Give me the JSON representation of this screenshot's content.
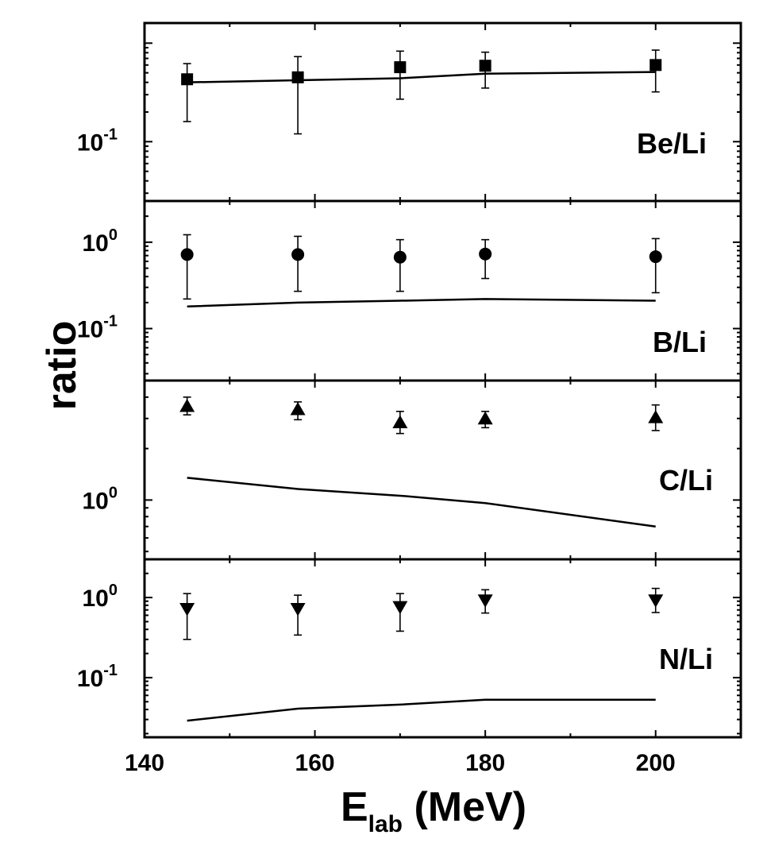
{
  "chart_data": {
    "type": "scatter",
    "xlabel": "E",
    "xlabel_subscript": "lab",
    "xlabel_unit": " (MeV)",
    "ylabel": "ratio",
    "xlim": [
      140,
      210
    ],
    "x_ticks": [
      140,
      160,
      180,
      200
    ],
    "x_tick_labels": [
      "140",
      "160",
      "180",
      "200"
    ],
    "grid": false,
    "log_y": true,
    "panels": [
      {
        "label": "Be/Li",
        "marker": "square",
        "ylim": [
          0.025,
          1.6
        ],
        "y_ticks": [
          {
            "value": 0.1,
            "base": "10",
            "exp": "-1"
          }
        ],
        "points": [
          {
            "x": 145,
            "y": 0.43,
            "err_low": 0.16,
            "err_high": 0.62
          },
          {
            "x": 158,
            "y": 0.45,
            "err_low": 0.12,
            "err_high": 0.73
          },
          {
            "x": 170,
            "y": 0.57,
            "err_low": 0.27,
            "err_high": 0.83
          },
          {
            "x": 180,
            "y": 0.59,
            "err_low": 0.35,
            "err_high": 0.81
          },
          {
            "x": 200,
            "y": 0.6,
            "err_low": 0.32,
            "err_high": 0.85
          }
        ],
        "model": [
          {
            "x": 145,
            "y": 0.4
          },
          {
            "x": 158,
            "y": 0.42
          },
          {
            "x": 170,
            "y": 0.44
          },
          {
            "x": 180,
            "y": 0.49
          },
          {
            "x": 200,
            "y": 0.51
          }
        ]
      },
      {
        "label": "B/Li",
        "marker": "circle",
        "ylim": [
          0.025,
          3.0
        ],
        "y_ticks": [
          {
            "value": 1,
            "base": "10",
            "exp": "0"
          },
          {
            "value": 0.1,
            "base": "10",
            "exp": "-1"
          }
        ],
        "points": [
          {
            "x": 145,
            "y": 0.72,
            "err_low": 0.22,
            "err_high": 1.22
          },
          {
            "x": 158,
            "y": 0.72,
            "err_low": 0.27,
            "err_high": 1.17
          },
          {
            "x": 170,
            "y": 0.67,
            "err_low": 0.27,
            "err_high": 1.07
          },
          {
            "x": 180,
            "y": 0.73,
            "err_low": 0.38,
            "err_high": 1.07
          },
          {
            "x": 200,
            "y": 0.68,
            "err_low": 0.26,
            "err_high": 1.1
          }
        ],
        "model": [
          {
            "x": 145,
            "y": 0.18
          },
          {
            "x": 158,
            "y": 0.2
          },
          {
            "x": 170,
            "y": 0.21
          },
          {
            "x": 180,
            "y": 0.22
          },
          {
            "x": 200,
            "y": 0.21
          }
        ]
      },
      {
        "label": "C/Li",
        "marker": "triangle-up",
        "ylim": [
          0.45,
          5.0
        ],
        "y_ticks": [
          {
            "value": 1,
            "base": "10",
            "exp": "0"
          }
        ],
        "points": [
          {
            "x": 145,
            "y": 3.55,
            "err_low": 3.15,
            "err_high": 4.0
          },
          {
            "x": 158,
            "y": 3.4,
            "err_low": 2.95,
            "err_high": 3.75
          },
          {
            "x": 170,
            "y": 2.85,
            "err_low": 2.45,
            "err_high": 3.3
          },
          {
            "x": 180,
            "y": 3.0,
            "err_low": 2.65,
            "err_high": 3.3
          },
          {
            "x": 200,
            "y": 3.05,
            "err_low": 2.55,
            "err_high": 3.6
          }
        ],
        "model": [
          {
            "x": 145,
            "y": 1.35
          },
          {
            "x": 158,
            "y": 1.16
          },
          {
            "x": 170,
            "y": 1.06
          },
          {
            "x": 180,
            "y": 0.96
          },
          {
            "x": 200,
            "y": 0.7
          }
        ]
      },
      {
        "label": "N/Li",
        "marker": "triangle-down",
        "ylim": [
          0.018,
          3.0
        ],
        "y_ticks": [
          {
            "value": 1,
            "base": "10",
            "exp": "0"
          },
          {
            "value": 0.1,
            "base": "10",
            "exp": "-1"
          }
        ],
        "points": [
          {
            "x": 145,
            "y": 0.72,
            "err_low": 0.3,
            "err_high": 1.12
          },
          {
            "x": 158,
            "y": 0.72,
            "err_low": 0.34,
            "err_high": 1.07
          },
          {
            "x": 170,
            "y": 0.76,
            "err_low": 0.38,
            "err_high": 1.12
          },
          {
            "x": 180,
            "y": 0.92,
            "err_low": 0.64,
            "err_high": 1.25
          },
          {
            "x": 200,
            "y": 0.92,
            "err_low": 0.65,
            "err_high": 1.3
          }
        ],
        "model": [
          {
            "x": 145,
            "y": 0.029
          },
          {
            "x": 158,
            "y": 0.041
          },
          {
            "x": 170,
            "y": 0.046
          },
          {
            "x": 180,
            "y": 0.053
          },
          {
            "x": 200,
            "y": 0.053
          }
        ]
      }
    ]
  }
}
